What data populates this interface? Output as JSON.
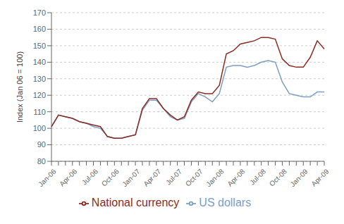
{
  "chart_data": {
    "type": "line",
    "y_label": "Index (Jan 06 = 100)",
    "categories": [
      "Jan-06",
      null,
      null,
      "Apr-06",
      null,
      null,
      "Jul-06",
      null,
      null,
      "Oct-06",
      null,
      null,
      "Jan-07",
      null,
      null,
      "Apr-07",
      null,
      null,
      "Jul-07",
      null,
      null,
      "Oct-07",
      null,
      null,
      "Jan-08",
      null,
      null,
      "Apr-08",
      null,
      null,
      "Jul-08",
      null,
      null,
      "Oct-08",
      null,
      null,
      "Jan-09",
      null,
      null,
      "Apr-09"
    ],
    "series": [
      {
        "name": "US dollars",
        "color": "#7b9ec4",
        "values": [
          101,
          108,
          107,
          106,
          104,
          103,
          101,
          100,
          95,
          94,
          94,
          95,
          96,
          111,
          117,
          117,
          112,
          107,
          105,
          106,
          116,
          121,
          119,
          116,
          121,
          137,
          138,
          138,
          137,
          138,
          140,
          141,
          140,
          128,
          121,
          120,
          119,
          119,
          122,
          122
        ]
      },
      {
        "name": "National currency",
        "color": "#8b2a20",
        "values": [
          101,
          108,
          107,
          106,
          104,
          103,
          102,
          101,
          95,
          94,
          94,
          95,
          96,
          112,
          118,
          118,
          112,
          108,
          105,
          107,
          117,
          122,
          121,
          121,
          126,
          145,
          147,
          151,
          152,
          153,
          155,
          155,
          154,
          142,
          138,
          137,
          137,
          143,
          153,
          148
        ]
      }
    ],
    "ylim": [
      80,
      170
    ],
    "yticks": [
      80,
      90,
      100,
      110,
      120,
      130,
      140,
      150,
      160,
      170
    ],
    "grid": true,
    "legend": "bottom"
  }
}
